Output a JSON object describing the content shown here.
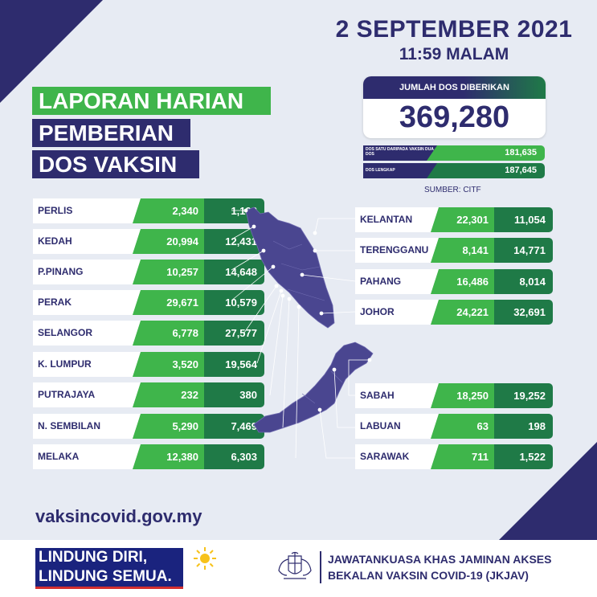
{
  "date": "2 SEPTEMBER 2021",
  "time": "11:59 MALAM",
  "title": [
    "LAPORAN HARIAN",
    "PEMBERIAN",
    "DOS VAKSIN"
  ],
  "total": {
    "label": "JUMLAH DOS DIBERIKAN",
    "value": "369,280"
  },
  "doses": [
    {
      "label": "DOS SATU DARIPADA VAKSIN DUA DOS",
      "value": "181,635"
    },
    {
      "label": "DOS LENGKAP",
      "value": "187,645"
    }
  ],
  "source": "SUMBER: CITF",
  "states_left": [
    {
      "name": "PERLIS",
      "dose1": "2,340",
      "complete": "1,192"
    },
    {
      "name": "KEDAH",
      "dose1": "20,994",
      "complete": "12,431"
    },
    {
      "name": "P.PINANG",
      "dose1": "10,257",
      "complete": "14,648"
    },
    {
      "name": "PERAK",
      "dose1": "29,671",
      "complete": "10,579"
    },
    {
      "name": "SELANGOR",
      "dose1": "6,778",
      "complete": "27,577"
    },
    {
      "name": "K. LUMPUR",
      "dose1": "3,520",
      "complete": "19,564"
    },
    {
      "name": "PUTRAJAYA",
      "dose1": "232",
      "complete": "380"
    },
    {
      "name": "N. SEMBILAN",
      "dose1": "5,290",
      "complete": "7,469"
    },
    {
      "name": "MELAKA",
      "dose1": "12,380",
      "complete": "6,303"
    }
  ],
  "states_right": [
    {
      "name": "KELANTAN",
      "dose1": "22,301",
      "complete": "11,054"
    },
    {
      "name": "TERENGGANU",
      "dose1": "8,141",
      "complete": "14,771"
    },
    {
      "name": "PAHANG",
      "dose1": "16,486",
      "complete": "8,014"
    },
    {
      "name": "JOHOR",
      "dose1": "24,221",
      "complete": "32,691"
    },
    {
      "name": "SABAH",
      "dose1": "18,250",
      "complete": "19,252"
    },
    {
      "name": "LABUAN",
      "dose1": "63",
      "complete": "198"
    },
    {
      "name": "SARAWAK",
      "dose1": "711",
      "complete": "1,522"
    }
  ],
  "website": "vaksincovid.gov.my",
  "slogan": [
    "LINDUNG DIRI,",
    "LINDUNG SEMUA."
  ],
  "committee": [
    "JAWATANKUASA KHAS JAMINAN AKSES",
    "BEKALAN VAKSIN COVID-19 (JKJAV)"
  ],
  "colors": {
    "navy": "#2e2c6e",
    "green": "#3fb54b",
    "dark_green": "#1f7a47",
    "background": "#e7ebf3"
  },
  "icons": [
    "malaysia-map-icon",
    "sun-icon",
    "coat-of-arms-icon"
  ]
}
